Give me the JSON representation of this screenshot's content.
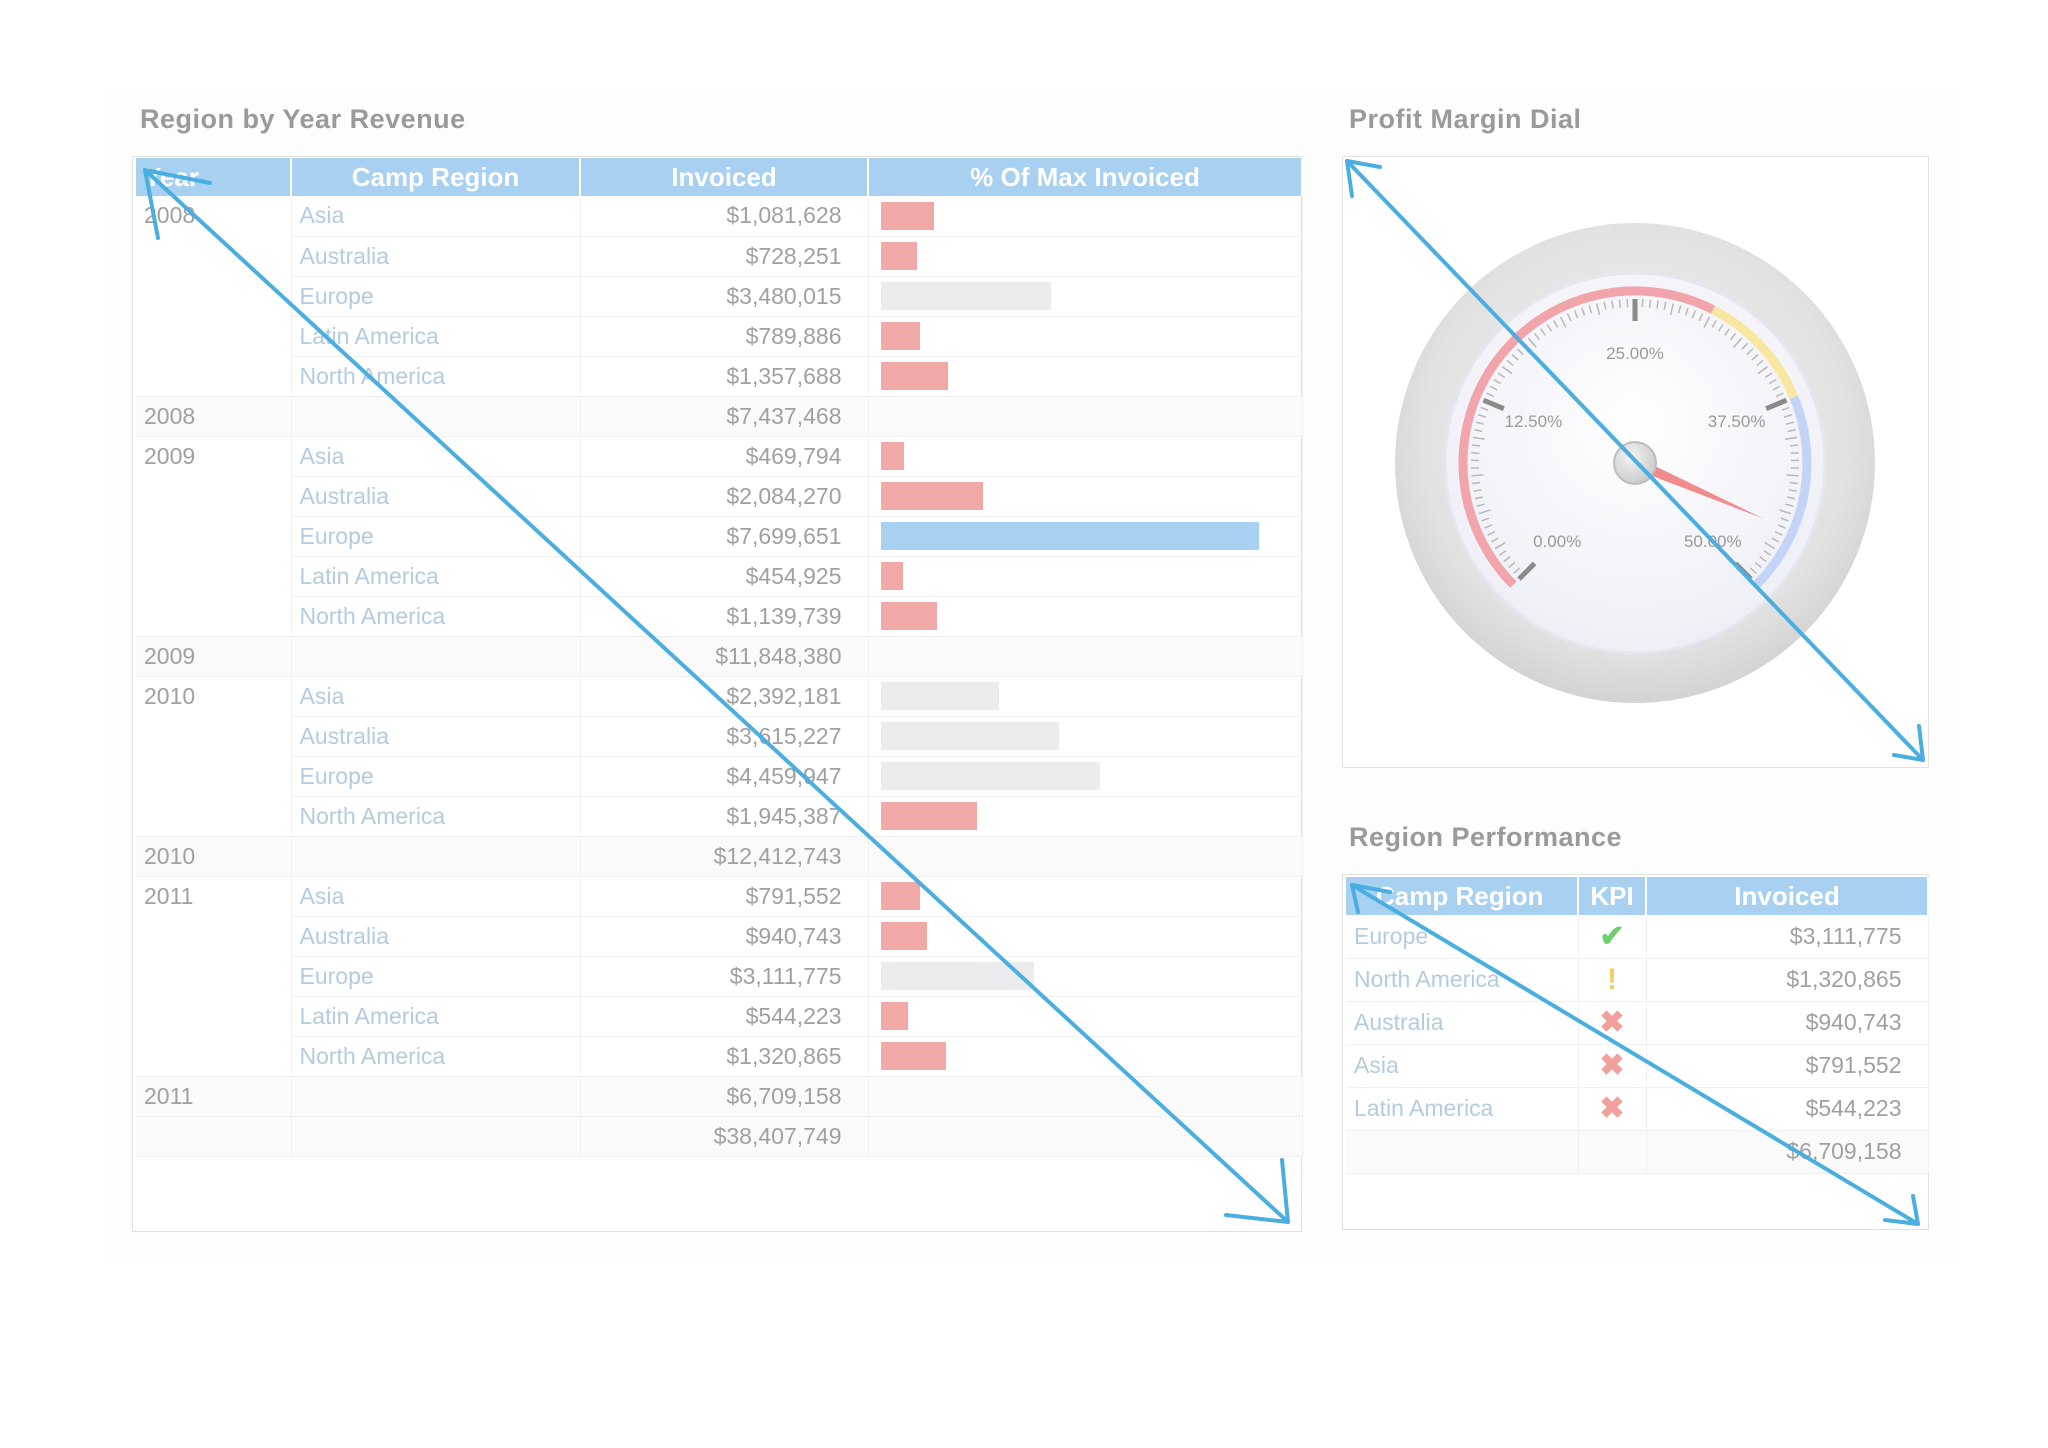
{
  "revenue_panel": {
    "title": "Region by Year Revenue",
    "columns": [
      "Year",
      "Camp Region",
      "Invoiced",
      "% Of Max Invoiced"
    ],
    "groups": [
      {
        "year": "2008",
        "rows": [
          {
            "region": "Asia",
            "invoiced": "$1,081,628",
            "pct": 0.14,
            "bar": "red"
          },
          {
            "region": "Australia",
            "invoiced": "$728,251",
            "pct": 0.095,
            "bar": "red"
          },
          {
            "region": "Europe",
            "invoiced": "$3,480,015",
            "pct": 0.45,
            "bar": "grey"
          },
          {
            "region": "Latin America",
            "invoiced": "$789,886",
            "pct": 0.103,
            "bar": "red"
          },
          {
            "region": "North America",
            "invoiced": "$1,357,688",
            "pct": 0.176,
            "bar": "red"
          }
        ],
        "subtotal_label": "2008",
        "subtotal": "$7,437,468"
      },
      {
        "year": "2009",
        "rows": [
          {
            "region": "Asia",
            "invoiced": "$469,794",
            "pct": 0.061,
            "bar": "red"
          },
          {
            "region": "Australia",
            "invoiced": "$2,084,270",
            "pct": 0.271,
            "bar": "red"
          },
          {
            "region": "Europe",
            "invoiced": "$7,699,651",
            "pct": 1.0,
            "bar": "blue"
          },
          {
            "region": "Latin America",
            "invoiced": "$454,925",
            "pct": 0.059,
            "bar": "red"
          },
          {
            "region": "North America",
            "invoiced": "$1,139,739",
            "pct": 0.148,
            "bar": "red"
          }
        ],
        "subtotal_label": "2009",
        "subtotal": "$11,848,380"
      },
      {
        "year": "2010",
        "rows": [
          {
            "region": "Asia",
            "invoiced": "$2,392,181",
            "pct": 0.311,
            "bar": "grey"
          },
          {
            "region": "Australia",
            "invoiced": "$3,615,227",
            "pct": 0.47,
            "bar": "grey"
          },
          {
            "region": "Europe",
            "invoiced": "$4,459,947",
            "pct": 0.579,
            "bar": "grey"
          },
          {
            "region": "North America",
            "invoiced": "$1,945,387",
            "pct": 0.253,
            "bar": "red"
          }
        ],
        "subtotal_label": "2010",
        "subtotal": "$12,412,743"
      },
      {
        "year": "2011",
        "rows": [
          {
            "region": "Asia",
            "invoiced": "$791,552",
            "pct": 0.103,
            "bar": "red"
          },
          {
            "region": "Australia",
            "invoiced": "$940,743",
            "pct": 0.122,
            "bar": "red"
          },
          {
            "region": "Europe",
            "invoiced": "$3,111,775",
            "pct": 0.404,
            "bar": "grey"
          },
          {
            "region": "Latin America",
            "invoiced": "$544,223",
            "pct": 0.071,
            "bar": "red"
          },
          {
            "region": "North America",
            "invoiced": "$1,320,865",
            "pct": 0.172,
            "bar": "red"
          }
        ],
        "subtotal_label": "2011",
        "subtotal": "$6,709,158"
      }
    ],
    "grand_total": "$38,407,749"
  },
  "dial_panel": {
    "title": "Profit Margin Dial",
    "min": 0,
    "max": 50,
    "value": 46,
    "tick_labels": [
      "0.00%",
      "12.50%",
      "25.00%",
      "37.50%",
      "50.00%"
    ],
    "colors": {
      "red": "#f2a4ab",
      "yellow": "#f7e7a0",
      "blue": "#c4d4f7",
      "needle": "#f08c8c"
    }
  },
  "performance_panel": {
    "title": "Region Performance",
    "columns": [
      "Camp Region",
      "KPI",
      "Invoiced"
    ],
    "rows": [
      {
        "region": "Europe",
        "kpi": "ok",
        "kpi_icon": "check-icon",
        "invoiced": "$3,111,775"
      },
      {
        "region": "North America",
        "kpi": "warn",
        "kpi_icon": "exclamation-icon",
        "invoiced": "$1,320,865"
      },
      {
        "region": "Australia",
        "kpi": "bad",
        "kpi_icon": "x-icon",
        "invoiced": "$940,743"
      },
      {
        "region": "Asia",
        "kpi": "bad",
        "kpi_icon": "x-icon",
        "invoiced": "$791,552"
      },
      {
        "region": "Latin America",
        "kpi": "bad",
        "kpi_icon": "x-icon",
        "invoiced": "$544,223"
      }
    ],
    "total": "$6,709,158"
  },
  "overlay_arrow_color": "#4aaee0"
}
